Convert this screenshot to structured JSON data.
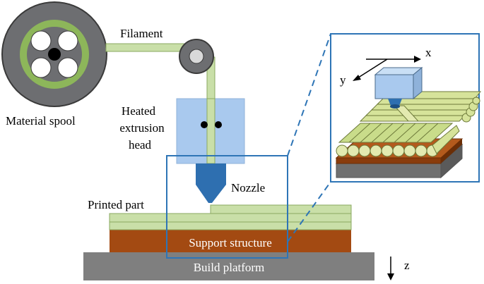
{
  "labels": {
    "material_spool": "Material spool",
    "filament": "Filament",
    "heated_head_line1": "Heated",
    "heated_head_line2": "extrusion",
    "heated_head_line3": "head",
    "nozzle": "Nozzle",
    "printed_part": "Printed part",
    "support_structure": "Support structure",
    "build_platform": "Build platform"
  },
  "axes": {
    "x": "x",
    "y": "y",
    "z": "z"
  },
  "colors": {
    "spool": "#6d6e71",
    "filament": "#c9dfa8",
    "filament_stroke": "#8aa860",
    "spool_ring": "#8db65a",
    "head": "#a9c9ee",
    "nozzle": "#2e6fb0",
    "support": "#a34a12",
    "platform": "#7f7f7f",
    "zoom_frame": "#2e75b6"
  }
}
